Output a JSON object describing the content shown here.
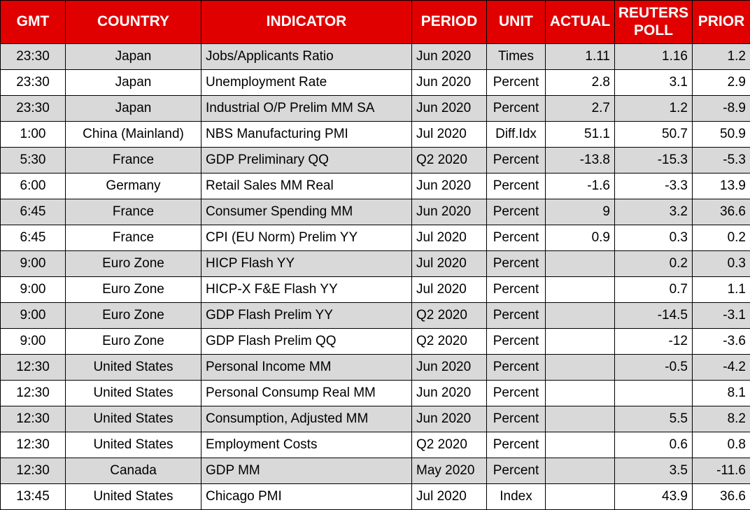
{
  "table": {
    "accent_color": "#e00000",
    "stripe_color": "#d9d9d9",
    "border_color": "#000000",
    "header_text_color": "#ffffff",
    "text_color": "#000000",
    "columns": [
      {
        "key": "gmt",
        "label": "GMT"
      },
      {
        "key": "country",
        "label": "COUNTRY"
      },
      {
        "key": "indicator",
        "label": "INDICATOR"
      },
      {
        "key": "period",
        "label": "PERIOD"
      },
      {
        "key": "unit",
        "label": "UNIT"
      },
      {
        "key": "actual",
        "label": "ACTUAL"
      },
      {
        "key": "poll",
        "label": "REUTERS POLL"
      },
      {
        "key": "prior",
        "label": "PRIOR"
      }
    ],
    "rows": [
      {
        "gmt": "23:30",
        "country": "Japan",
        "indicator": "Jobs/Applicants Ratio",
        "period": "Jun 2020",
        "unit": "Times",
        "actual": "1.11",
        "poll": "1.16",
        "prior": "1.2"
      },
      {
        "gmt": "23:30",
        "country": "Japan",
        "indicator": "Unemployment Rate",
        "period": "Jun 2020",
        "unit": "Percent",
        "actual": "2.8",
        "poll": "3.1",
        "prior": "2.9"
      },
      {
        "gmt": "23:30",
        "country": "Japan",
        "indicator": "Industrial O/P Prelim MM SA",
        "period": "Jun 2020",
        "unit": "Percent",
        "actual": "2.7",
        "poll": "1.2",
        "prior": "-8.9"
      },
      {
        "gmt": "1:00",
        "country": "China (Mainland)",
        "indicator": "NBS Manufacturing PMI",
        "period": "Jul 2020",
        "unit": "Diff.Idx",
        "actual": "51.1",
        "poll": "50.7",
        "prior": "50.9"
      },
      {
        "gmt": "5:30",
        "country": "France",
        "indicator": "GDP Preliminary QQ",
        "period": "Q2 2020",
        "unit": "Percent",
        "actual": "-13.8",
        "poll": "-15.3",
        "prior": "-5.3"
      },
      {
        "gmt": "6:00",
        "country": "Germany",
        "indicator": "Retail Sales MM Real",
        "period": "Jun 2020",
        "unit": "Percent",
        "actual": "-1.6",
        "poll": "-3.3",
        "prior": "13.9"
      },
      {
        "gmt": "6:45",
        "country": "France",
        "indicator": "Consumer Spending MM",
        "period": "Jun 2020",
        "unit": "Percent",
        "actual": "9",
        "poll": "3.2",
        "prior": "36.6"
      },
      {
        "gmt": "6:45",
        "country": "France",
        "indicator": "CPI (EU Norm) Prelim YY",
        "period": "Jul 2020",
        "unit": "Percent",
        "actual": "0.9",
        "poll": "0.3",
        "prior": "0.2"
      },
      {
        "gmt": "9:00",
        "country": "Euro Zone",
        "indicator": "HICP Flash YY",
        "period": "Jul 2020",
        "unit": "Percent",
        "actual": "",
        "poll": "0.2",
        "prior": "0.3"
      },
      {
        "gmt": "9:00",
        "country": "Euro Zone",
        "indicator": "HICP-X F&E Flash YY",
        "period": "Jul 2020",
        "unit": "Percent",
        "actual": "",
        "poll": "0.7",
        "prior": "1.1"
      },
      {
        "gmt": "9:00",
        "country": "Euro Zone",
        "indicator": "GDP Flash Prelim YY",
        "period": "Q2 2020",
        "unit": "Percent",
        "actual": "",
        "poll": "-14.5",
        "prior": "-3.1"
      },
      {
        "gmt": "9:00",
        "country": "Euro Zone",
        "indicator": "GDP Flash Prelim QQ",
        "period": "Q2 2020",
        "unit": "Percent",
        "actual": "",
        "poll": "-12",
        "prior": "-3.6"
      },
      {
        "gmt": "12:30",
        "country": "United States",
        "indicator": "Personal Income MM",
        "period": "Jun 2020",
        "unit": "Percent",
        "actual": "",
        "poll": "-0.5",
        "prior": "-4.2"
      },
      {
        "gmt": "12:30",
        "country": "United States",
        "indicator": "Personal Consump Real MM",
        "period": "Jun 2020",
        "unit": "Percent",
        "actual": "",
        "poll": "",
        "prior": "8.1"
      },
      {
        "gmt": "12:30",
        "country": "United States",
        "indicator": "Consumption, Adjusted MM",
        "period": "Jun 2020",
        "unit": "Percent",
        "actual": "",
        "poll": "5.5",
        "prior": "8.2"
      },
      {
        "gmt": "12:30",
        "country": "United States",
        "indicator": "Employment Costs",
        "period": "Q2 2020",
        "unit": "Percent",
        "actual": "",
        "poll": "0.6",
        "prior": "0.8"
      },
      {
        "gmt": "12:30",
        "country": "Canada",
        "indicator": "GDP MM",
        "period": "May 2020",
        "unit": "Percent",
        "actual": "",
        "poll": "3.5",
        "prior": "-11.6"
      },
      {
        "gmt": "13:45",
        "country": "United States",
        "indicator": "Chicago PMI",
        "period": "Jul 2020",
        "unit": "Index",
        "actual": "",
        "poll": "43.9",
        "prior": "36.6"
      }
    ]
  }
}
